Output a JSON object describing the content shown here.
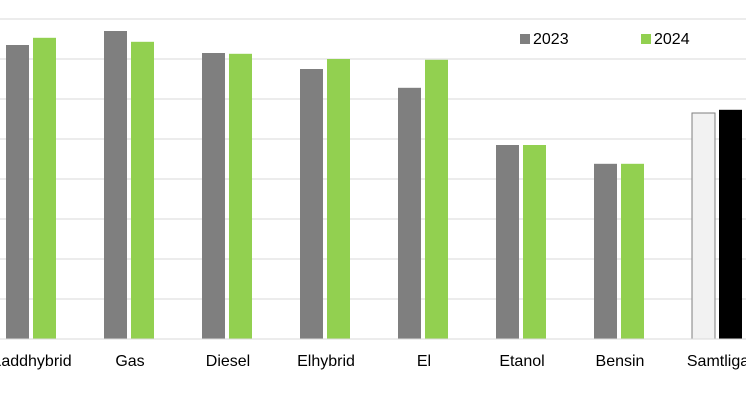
{
  "chart_data": {
    "type": "bar",
    "categories": [
      "Laddhybrid",
      "Gas",
      "Diesel",
      "Elhybrid",
      "El",
      "Etanol",
      "Bensin",
      "Samtliga"
    ],
    "series": [
      {
        "name": "2023",
        "color": "#7f7f7f",
        "colors": [
          "#7f7f7f",
          "#7f7f7f",
          "#7f7f7f",
          "#7f7f7f",
          "#7f7f7f",
          "#7f7f7f",
          "#7f7f7f",
          "#f2f2f2"
        ],
        "values": [
          7.35,
          7.7,
          7.15,
          6.75,
          6.28,
          4.85,
          4.38,
          5.65
        ]
      },
      {
        "name": "2024",
        "color": "#92d050",
        "colors": [
          "#92d050",
          "#92d050",
          "#92d050",
          "#92d050",
          "#92d050",
          "#92d050",
          "#92d050",
          "#000000"
        ],
        "values": [
          7.53,
          7.43,
          7.13,
          7.0,
          6.98,
          4.85,
          4.38,
          5.73
        ]
      }
    ],
    "ylim": [
      0,
      8
    ],
    "yticks": [
      0,
      1,
      2,
      3,
      4,
      5,
      6,
      7,
      8
    ],
    "grid": true,
    "legend": "top-right"
  }
}
